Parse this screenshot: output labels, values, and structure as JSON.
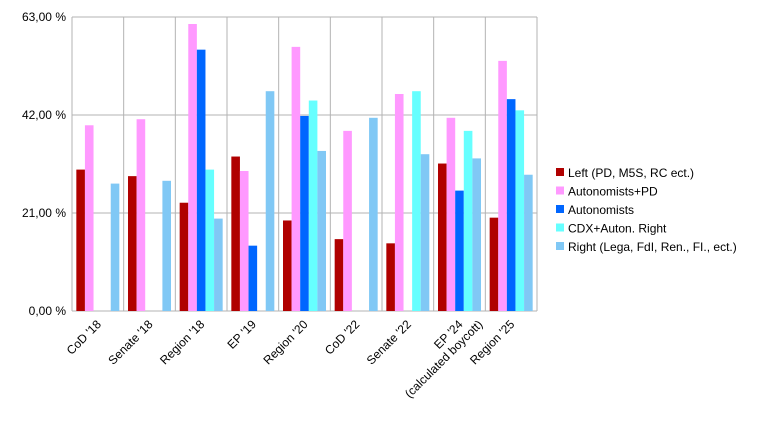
{
  "chart_data": {
    "type": "bar",
    "categories": [
      "CoD '18",
      "Senate '18",
      "Region '18",
      "EP '19",
      "Region '20",
      "CoD '22",
      "Senate '22",
      "EP '24\n(calculated boycott)",
      "Region '25"
    ],
    "series": [
      {
        "name": "Left (PD, M5S, RC ect.)",
        "color": "#b00000",
        "values": [
          30.3,
          28.9,
          23.2,
          33.1,
          19.4,
          15.4,
          14.5,
          31.6,
          20.0
        ]
      },
      {
        "name": "Autonomists+PD",
        "color": "#ff99ff",
        "values": [
          39.8,
          41.1,
          61.5,
          30.0,
          56.6,
          38.6,
          46.5,
          41.4,
          53.6
        ]
      },
      {
        "name": "Autonomists",
        "color": "#0066ff",
        "values": [
          null,
          null,
          56.0,
          14.0,
          41.8,
          null,
          null,
          25.8,
          45.4
        ]
      },
      {
        "name": "CDX+Auton. Right",
        "color": "#66ffff",
        "values": [
          null,
          null,
          30.3,
          null,
          45.1,
          null,
          47.1,
          38.6,
          43.0
        ]
      },
      {
        "name": "Right (Lega, FdI, Ren., FI., ect.)",
        "color": "#80c8f5",
        "values": [
          27.3,
          27.9,
          19.8,
          47.1,
          34.3,
          41.4,
          33.6,
          32.7,
          29.2
        ]
      }
    ],
    "yticks": [
      "0,00 %",
      "21,00 %",
      "42,00 %",
      "63,00 %"
    ],
    "ytick_values": [
      0,
      21,
      42,
      63
    ],
    "ylim": [
      0,
      63
    ],
    "grid": true,
    "legend_position": "right"
  }
}
